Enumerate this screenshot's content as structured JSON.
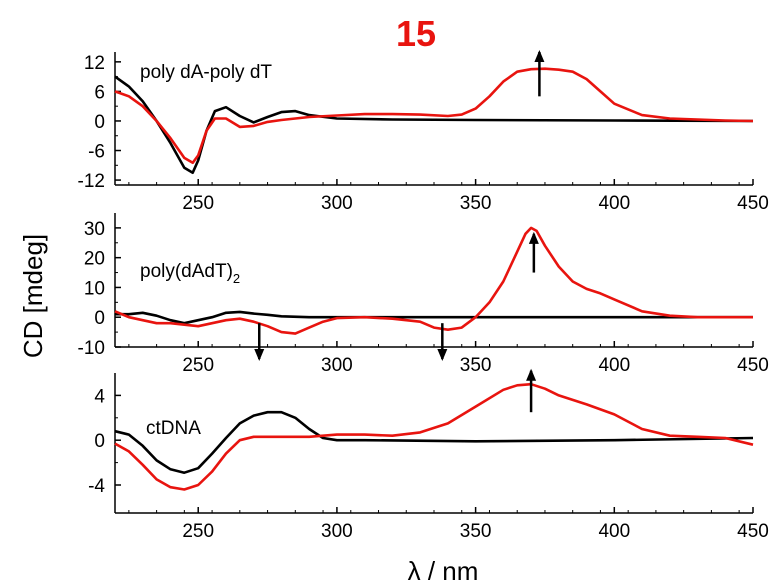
{
  "title": "15",
  "xlabel": "λ / nm",
  "ylabel": "CD [mdeg]",
  "colors": {
    "black_curve": "#000000",
    "red_curve": "#e8140f",
    "title": "#e8140f"
  },
  "chart_data": [
    {
      "type": "line",
      "label": "poly dA-poly dT",
      "xlim": [
        220,
        450
      ],
      "ylim": [
        -13,
        14
      ],
      "xticks": [
        250,
        300,
        350,
        400,
        450
      ],
      "yticks": [
        12,
        6,
        0,
        -6,
        -12
      ],
      "series": [
        {
          "color": "#000000",
          "x": [
            220,
            225,
            230,
            235,
            240,
            245,
            248,
            250,
            253,
            256,
            260,
            265,
            270,
            275,
            280,
            285,
            290,
            300,
            320,
            350,
            400,
            450
          ],
          "y": [
            9,
            7,
            4,
            0,
            -4.5,
            -9.5,
            -10.5,
            -8,
            -2,
            2,
            2.8,
            1,
            -0.3,
            0.8,
            1.8,
            2,
            1.2,
            0.5,
            0.3,
            0.2,
            0.1,
            0
          ]
        },
        {
          "color": "#e8140f",
          "x": [
            220,
            225,
            230,
            235,
            240,
            245,
            248,
            250,
            253,
            256,
            260,
            265,
            270,
            275,
            280,
            290,
            300,
            310,
            320,
            330,
            340,
            345,
            350,
            355,
            360,
            365,
            370,
            375,
            380,
            385,
            390,
            395,
            400,
            410,
            420,
            430,
            440,
            450
          ],
          "y": [
            6,
            5,
            3,
            0,
            -3.5,
            -7.5,
            -8.5,
            -7,
            -2,
            0.5,
            0.5,
            -1.2,
            -1,
            -0.2,
            0.2,
            0.8,
            1.1,
            1.4,
            1.4,
            1.3,
            1,
            1.3,
            2.5,
            5,
            8,
            10,
            10.5,
            10.6,
            10.4,
            10,
            8.5,
            6,
            3.5,
            1.2,
            0.5,
            0.3,
            0.1,
            0
          ]
        }
      ],
      "annotations": [
        {
          "type": "arrow",
          "direction": "up",
          "x": 373,
          "y_from": 5,
          "y_to": 14
        }
      ]
    },
    {
      "type": "line",
      "label": "poly(dAdT)",
      "label_sub": "2",
      "xlim": [
        220,
        450
      ],
      "ylim": [
        -10,
        35
      ],
      "xticks": [
        250,
        300,
        350,
        400,
        450
      ],
      "yticks": [
        30,
        20,
        10,
        0,
        -10
      ],
      "series": [
        {
          "color": "#000000",
          "x": [
            220,
            225,
            230,
            235,
            240,
            245,
            250,
            255,
            260,
            265,
            270,
            275,
            280,
            290,
            300,
            320,
            350,
            400,
            450
          ],
          "y": [
            1,
            1,
            1.5,
            0.5,
            -1,
            -2,
            -1,
            0,
            1.5,
            1.8,
            1.2,
            0.8,
            0.3,
            0,
            0,
            0,
            0,
            0,
            0
          ]
        },
        {
          "color": "#e8140f",
          "x": [
            220,
            225,
            230,
            235,
            240,
            245,
            250,
            255,
            260,
            265,
            270,
            275,
            280,
            285,
            290,
            295,
            300,
            310,
            320,
            330,
            335,
            340,
            345,
            350,
            355,
            360,
            365,
            368,
            370,
            372,
            375,
            380,
            385,
            390,
            395,
            400,
            410,
            420,
            430,
            440,
            450
          ],
          "y": [
            2,
            0,
            -1,
            -2,
            -2,
            -2.5,
            -3,
            -2,
            -1,
            -0.5,
            -1.5,
            -3,
            -5,
            -5.5,
            -3.5,
            -1.5,
            -0.3,
            0,
            -0.5,
            -1.5,
            -3.5,
            -4.2,
            -3.5,
            0,
            5,
            12,
            22,
            28,
            30,
            29,
            24,
            17,
            12,
            9.5,
            8,
            6,
            2,
            0.5,
            0,
            0,
            0
          ]
        }
      ],
      "annotations": [
        {
          "type": "arrow",
          "direction": "up",
          "x": 371,
          "y_from": 15,
          "y_to": 28
        },
        {
          "type": "arrow",
          "direction": "down",
          "x": 272,
          "y_from": -2,
          "y_to": -16
        },
        {
          "type": "arrow",
          "direction": "down",
          "x": 338,
          "y_from": -2,
          "y_to": -16
        }
      ]
    },
    {
      "type": "line",
      "label": "ctDNA",
      "xlim": [
        220,
        450
      ],
      "ylim": [
        -6.5,
        6
      ],
      "xticks": [
        250,
        300,
        350,
        400,
        450
      ],
      "yticks": [
        4,
        0,
        -4
      ],
      "series": [
        {
          "color": "#000000",
          "x": [
            220,
            225,
            230,
            235,
            240,
            245,
            250,
            255,
            260,
            265,
            270,
            275,
            280,
            285,
            290,
            295,
            300,
            310,
            350,
            400,
            450
          ],
          "y": [
            0.8,
            0.5,
            -0.5,
            -1.8,
            -2.6,
            -2.9,
            -2.5,
            -1.2,
            0.2,
            1.5,
            2.2,
            2.5,
            2.5,
            2,
            1,
            0.2,
            0,
            0,
            -0.1,
            0,
            0.2
          ]
        },
        {
          "color": "#e8140f",
          "x": [
            220,
            225,
            230,
            235,
            240,
            245,
            250,
            255,
            260,
            265,
            270,
            280,
            290,
            300,
            310,
            320,
            330,
            340,
            350,
            360,
            365,
            370,
            375,
            380,
            390,
            400,
            410,
            420,
            430,
            440,
            450
          ],
          "y": [
            -0.3,
            -1,
            -2.2,
            -3.5,
            -4.2,
            -4.4,
            -4,
            -2.8,
            -1.2,
            0,
            0.3,
            0.3,
            0.3,
            0.5,
            0.5,
            0.4,
            0.7,
            1.5,
            3,
            4.5,
            4.9,
            5,
            4.6,
            4,
            3.2,
            2.3,
            1,
            0.4,
            0.3,
            0.2,
            -0.4
          ]
        }
      ],
      "annotations": [
        {
          "type": "arrow",
          "direction": "up",
          "x": 370,
          "y_from": 2.5,
          "y_to": 6.2
        }
      ]
    }
  ]
}
